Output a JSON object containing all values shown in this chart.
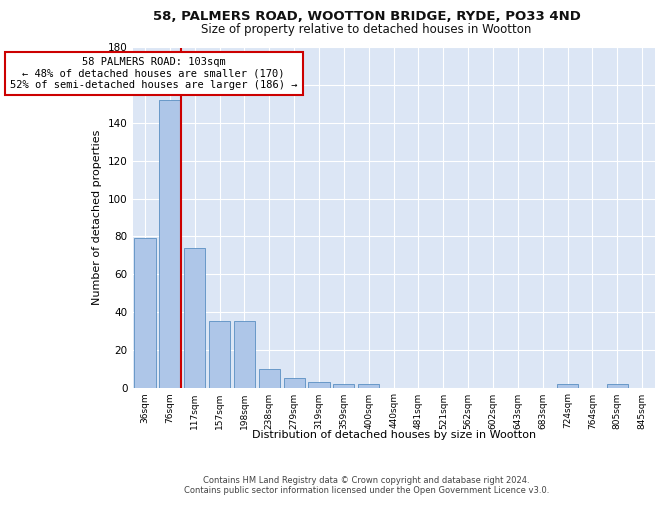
{
  "title1": "58, PALMERS ROAD, WOOTTON BRIDGE, RYDE, PO33 4ND",
  "title2": "Size of property relative to detached houses in Wootton",
  "xlabel": "Distribution of detached houses by size in Wootton",
  "ylabel": "Number of detached properties",
  "bar_labels": [
    "36sqm",
    "76sqm",
    "117sqm",
    "157sqm",
    "198sqm",
    "238sqm",
    "279sqm",
    "319sqm",
    "359sqm",
    "400sqm",
    "440sqm",
    "481sqm",
    "521sqm",
    "562sqm",
    "602sqm",
    "643sqm",
    "683sqm",
    "724sqm",
    "764sqm",
    "805sqm",
    "845sqm"
  ],
  "bar_values": [
    79,
    152,
    74,
    35,
    35,
    10,
    5,
    3,
    2,
    2,
    0,
    0,
    0,
    0,
    0,
    0,
    0,
    2,
    0,
    2,
    0
  ],
  "bar_color": "#aec6e8",
  "bar_edge_color": "#5a8fc2",
  "background_color": "#dce6f5",
  "grid_color": "#ffffff",
  "ylim": [
    0,
    180
  ],
  "yticks": [
    0,
    20,
    40,
    60,
    80,
    100,
    120,
    140,
    160,
    180
  ],
  "property_bin_index": 1,
  "vline_color": "#cc0000",
  "annotation_line1": "58 PALMERS ROAD: 103sqm",
  "annotation_line2": "← 48% of detached houses are smaller (170)",
  "annotation_line3": "52% of semi-detached houses are larger (186) →",
  "annotation_box_color": "#cc0000",
  "annotation_fontsize": 7.5,
  "footer_text": "Contains HM Land Registry data © Crown copyright and database right 2024.\nContains public sector information licensed under the Open Government Licence v3.0.",
  "title1_fontsize": 9.5,
  "title2_fontsize": 8.5,
  "xlabel_fontsize": 8,
  "ylabel_fontsize": 8
}
